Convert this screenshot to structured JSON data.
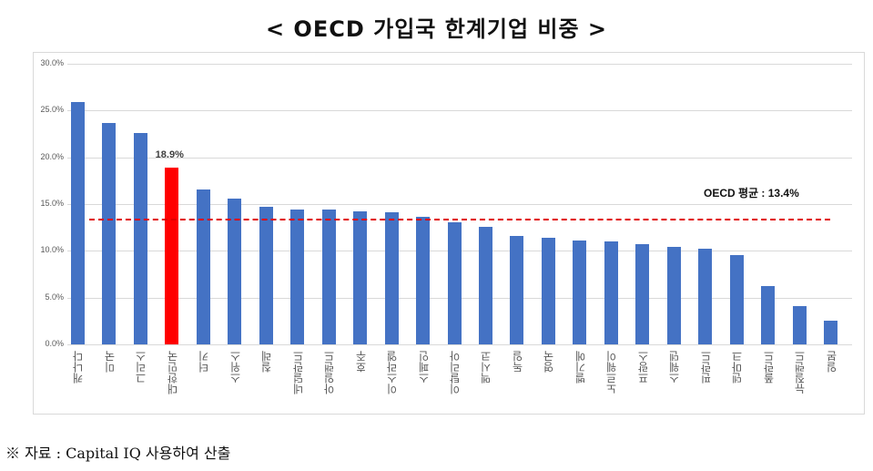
{
  "title": "< OECD 가입국 한계기업 비중 >",
  "source_note": "※ 자료 : Capital IQ 사용하여 산출",
  "colors": {
    "bar": "#4472c4",
    "highlight": "#ff0000",
    "avg_line": "#e00000",
    "grid": "#d9d9d9"
  },
  "chart_data": {
    "type": "bar",
    "title": "< OECD 가입국 한계기업 비중 >",
    "xlabel": "",
    "ylabel": "",
    "ylim": [
      0,
      30
    ],
    "yticks": [
      "0.0%",
      "5.0%",
      "10.0%",
      "15.0%",
      "20.0%",
      "25.0%",
      "30.0%"
    ],
    "grid": true,
    "legend": null,
    "categories": [
      "캐나다",
      "미국",
      "그리스",
      "대한민국",
      "터키",
      "스위스",
      "칠레",
      "네덜란드",
      "아일랜드",
      "호주",
      "이스라엘",
      "스페인",
      "이탈리아",
      "멕시코",
      "독일",
      "영국",
      "벨기에",
      "노르웨이",
      "프랑스",
      "스웨덴",
      "핀란드",
      "덴마크",
      "폴란드",
      "뉴질랜드",
      "일본"
    ],
    "values": [
      25.9,
      23.7,
      22.6,
      18.9,
      16.6,
      15.6,
      14.7,
      14.4,
      14.4,
      14.2,
      14.1,
      13.6,
      13.1,
      12.6,
      11.6,
      11.4,
      11.1,
      11.0,
      10.7,
      10.4,
      10.2,
      9.5,
      6.2,
      4.1,
      2.5
    ],
    "highlight_index": 3,
    "annotations": [
      {
        "type": "data_label",
        "category": "대한민국",
        "text": "18.9%"
      },
      {
        "type": "hline",
        "value": 13.4,
        "style": "dashed",
        "color": "#e00000",
        "text": "OECD 평균 : 13.4%"
      }
    ]
  }
}
